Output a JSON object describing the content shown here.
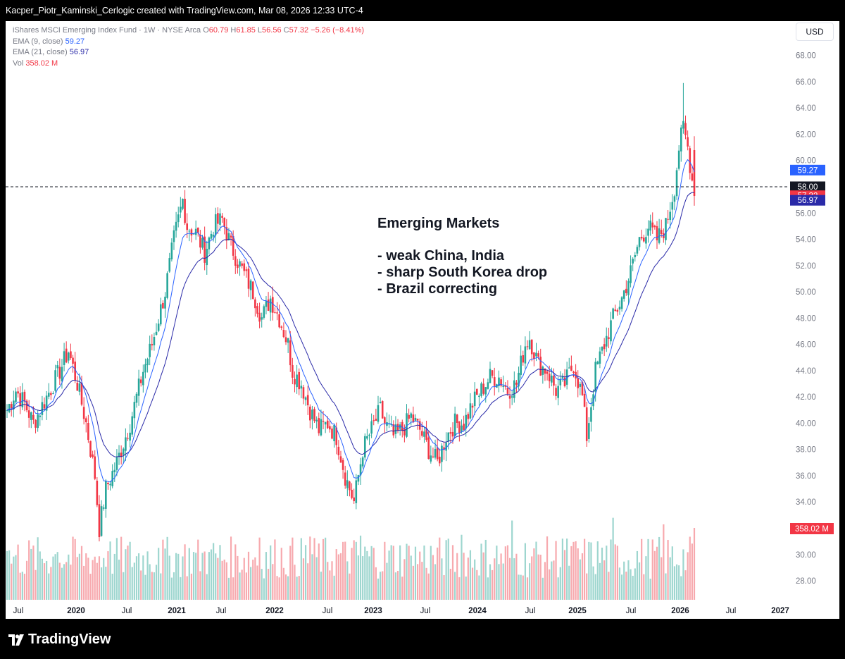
{
  "header": {
    "attribution": "Kacper_Piotr_Kaminski_Cerlogic created with TradingView.com, Mar 08, 2026 12:33 UTC-4"
  },
  "legend": {
    "symbol": "iShares MSCI Emerging Index Fund · 1W · NYSE Arca",
    "o_label": "O",
    "o_value": "60.79",
    "h_label": "H",
    "h_value": "61.85",
    "l_label": "L",
    "l_value": "56.56",
    "c_label": "C",
    "c_value": "57.32",
    "change": "−5.26 (−8.41%)",
    "ema9_label": "EMA (9, close)",
    "ema9_value": "59.27",
    "ema21_label": "EMA (21, close)",
    "ema21_value": "56.97",
    "vol_label": "Vol",
    "vol_value": "358.02 M"
  },
  "currency": "USD",
  "annotation": {
    "title": "Emerging Markets",
    "bullets": [
      "- weak China, India",
      "- sharp South Korea drop",
      "- Brazil correcting"
    ]
  },
  "footer": {
    "brand": "TradingView"
  },
  "colors": {
    "up": "#26a69a",
    "down": "#f23645",
    "ema9": "#2962ff",
    "ema21": "#2a2aa8",
    "up_vol": "#9ed6cf",
    "down_vol": "#f7a9ae"
  },
  "chart_data": {
    "type": "candlestick",
    "ylim": [
      26.5,
      69.0
    ],
    "y_ticks": [
      "68.00",
      "66.00",
      "64.00",
      "62.00",
      "60.00",
      "58.00",
      "56.00",
      "54.00",
      "52.00",
      "50.00",
      "48.00",
      "46.00",
      "44.00",
      "42.00",
      "40.00",
      "38.00",
      "36.00",
      "34.00",
      "32.00",
      "30.00",
      "28.00"
    ],
    "x_ticks": [
      "Jul",
      "2020",
      "Jul",
      "2021",
      "Jul",
      "2022",
      "Jul",
      "2023",
      "Jul",
      "2024",
      "Jul",
      "2025",
      "Jul",
      "2026",
      "Jul",
      "2027"
    ],
    "horizontal_line": 58.0,
    "price_labels": [
      {
        "text": "59.27",
        "value": 59.27,
        "color": "#2962ff"
      },
      {
        "text": "58.00",
        "value": 58.0,
        "color": "#131722"
      },
      {
        "text": "57.32",
        "value": 57.32,
        "color": "#f23645"
      },
      {
        "text": "56.97",
        "value": 56.97,
        "color": "#2a2aa8"
      }
    ],
    "volume_label": "358.02 M",
    "waypoints": [
      [
        0,
        41.0
      ],
      [
        4,
        42.5
      ],
      [
        8,
        41.5
      ],
      [
        12,
        40.0
      ],
      [
        18,
        42.0
      ],
      [
        24,
        44.0
      ],
      [
        28,
        45.5
      ],
      [
        32,
        43.0
      ],
      [
        36,
        40.0
      ],
      [
        40,
        36.0
      ],
      [
        42,
        32.0
      ],
      [
        45,
        35.0
      ],
      [
        50,
        37.0
      ],
      [
        56,
        40.0
      ],
      [
        62,
        44.0
      ],
      [
        66,
        46.0
      ],
      [
        72,
        50.0
      ],
      [
        76,
        54.0
      ],
      [
        80,
        57.0
      ],
      [
        82,
        55.0
      ],
      [
        86,
        54.5
      ],
      [
        90,
        53.0
      ],
      [
        94,
        55.0
      ],
      [
        98,
        55.5
      ],
      [
        102,
        53.5
      ],
      [
        106,
        52.0
      ],
      [
        112,
        50.0
      ],
      [
        116,
        48.0
      ],
      [
        120,
        49.5
      ],
      [
        124,
        48.0
      ],
      [
        128,
        46.0
      ],
      [
        130,
        44.0
      ],
      [
        134,
        43.0
      ],
      [
        138,
        41.0
      ],
      [
        142,
        39.5
      ],
      [
        146,
        40.0
      ],
      [
        150,
        39.0
      ],
      [
        154,
        36.0
      ],
      [
        158,
        34.0
      ],
      [
        162,
        38.0
      ],
      [
        166,
        39.5
      ],
      [
        170,
        41.0
      ],
      [
        172,
        40.0
      ],
      [
        176,
        39.0
      ],
      [
        180,
        39.5
      ],
      [
        184,
        40.5
      ],
      [
        188,
        39.5
      ],
      [
        192,
        38.0
      ],
      [
        196,
        37.0
      ],
      [
        200,
        39.0
      ],
      [
        204,
        40.0
      ],
      [
        208,
        40.0
      ],
      [
        212,
        41.5
      ],
      [
        216,
        42.5
      ],
      [
        220,
        43.5
      ],
      [
        224,
        43.5
      ],
      [
        228,
        42.5
      ],
      [
        232,
        43.0
      ],
      [
        236,
        46.0
      ],
      [
        238,
        46.5
      ],
      [
        242,
        44.5
      ],
      [
        246,
        44.0
      ],
      [
        250,
        42.5
      ],
      [
        254,
        43.0
      ],
      [
        258,
        44.5
      ],
      [
        262,
        42.0
      ],
      [
        264,
        39.0
      ],
      [
        268,
        44.0
      ],
      [
        272,
        46.0
      ],
      [
        276,
        48.0
      ],
      [
        280,
        49.5
      ],
      [
        284,
        51.5
      ],
      [
        288,
        54.0
      ],
      [
        292,
        55.0
      ],
      [
        296,
        54.0
      ],
      [
        300,
        55.0
      ],
      [
        304,
        58.0
      ],
      [
        306,
        61.0
      ],
      [
        308,
        62.5
      ],
      [
        310,
        61.0
      ],
      [
        313,
        57.3
      ]
    ]
  }
}
